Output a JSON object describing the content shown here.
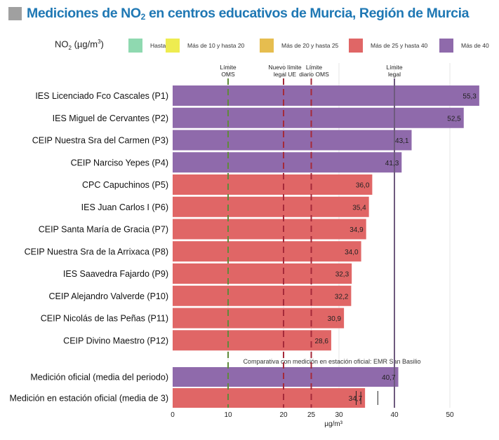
{
  "title": {
    "prefix": "Mediciones de NO",
    "sub": "2",
    "suffix": " en centros educativos de Murcia, Región de Murcia"
  },
  "legend": {
    "label_prefix": "NO",
    "label_sub": "2",
    "label_mid": " (µg/m",
    "label_sup": "3",
    "label_suffix": ")",
    "items": [
      {
        "label": "Hasta 10",
        "color": "#8fd9b0"
      },
      {
        "label": "Más de 10 y hasta 20",
        "color": "#eeec50"
      },
      {
        "label": "Más de 20 y hasta 25",
        "color": "#e6bd4f"
      },
      {
        "label": "Más de 25 y hasta 40",
        "color": "#e06666"
      },
      {
        "label": "Más de 40",
        "color": "#8f6aab"
      }
    ]
  },
  "chart_data": {
    "type": "bar",
    "orientation": "horizontal",
    "title": "Mediciones de NO2 en centros educativos de Murcia, Región de Murcia",
    "xlabel": "µg/m³",
    "xlim": [
      0,
      55
    ],
    "xticks": [
      0,
      10,
      20,
      25,
      30,
      40,
      50
    ],
    "grid": true,
    "legend_placement": "top",
    "categories": [
      "IES Licenciado Fco Cascales (P1)",
      "IES Miguel de Cervantes (P2)",
      "CEIP Nuestra Sra del Carmen (P3)",
      "CEIP Narciso Yepes (P4)",
      "CPC Capuchinos (P5)",
      "IES Juan Carlos I (P6)",
      "CEIP Santa María de Gracia (P7)",
      "CEIP Nuestra Sra de la Arrixaca (P8)",
      "IES Saavedra Fajardo (P9)",
      "CEIP Alejandro Valverde (P10)",
      "CEIP Nicolás de las Peñas (P11)",
      "CEIP Divino Maestro (P12)"
    ],
    "values": [
      55.3,
      52.5,
      43.1,
      41.3,
      36.0,
      35.4,
      34.9,
      34.0,
      32.3,
      32.2,
      30.9,
      28.6
    ],
    "value_labels": [
      "55,3",
      "52,5",
      "43,1",
      "41,3",
      "36,0",
      "35,4",
      "34,9",
      "34,0",
      "32,3",
      "32,2",
      "30,9",
      "28,6"
    ],
    "comparison": {
      "note": "Comparativa con medición en estación oficial: EMR San Basilio",
      "categories": [
        "Medición oficial (media del periodo)",
        "Medición en estación oficial (media de 3)"
      ],
      "values": [
        40.7,
        34.7
      ],
      "value_labels": [
        "40,7",
        "34,7"
      ],
      "error_bar": {
        "series_index": 1,
        "low": 33.1,
        "high": 37.0
      }
    },
    "reference_lines": [
      {
        "value": 10,
        "label_lines": [
          "Límite",
          "OMS"
        ],
        "style": "dashed",
        "color": "#5f8a3a"
      },
      {
        "value": 20,
        "label_lines": [
          "Nuevo límite",
          "legal UE"
        ],
        "style": "dashed",
        "color": "#a52a3a"
      },
      {
        "value": 25,
        "label_lines": [
          "Límite",
          "diario OMS"
        ],
        "style": "dashed",
        "color": "#a52a3a"
      },
      {
        "value": 40,
        "label_lines": [
          "Límite",
          "legal"
        ],
        "style": "solid",
        "color": "#6e5a7e"
      }
    ],
    "color_bins": [
      {
        "max": 10,
        "color": "#8fd9b0"
      },
      {
        "max": 20,
        "color": "#eeec50"
      },
      {
        "max": 25,
        "color": "#e6bd4f"
      },
      {
        "max": 40,
        "color": "#e06666"
      },
      {
        "max": 1000,
        "color": "#8f6aab"
      }
    ]
  }
}
